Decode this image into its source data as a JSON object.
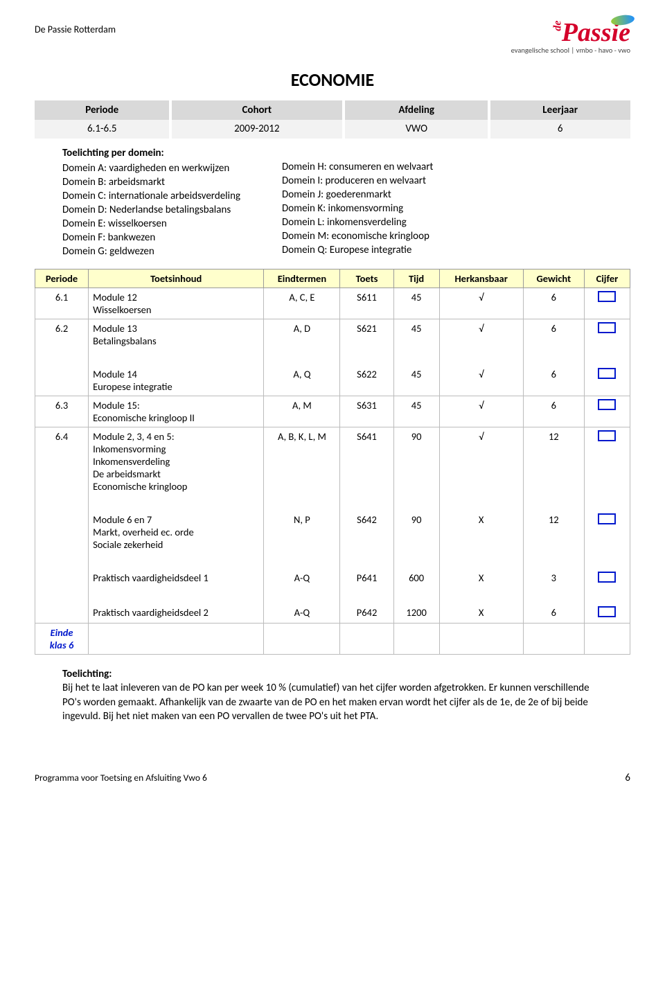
{
  "org_name": "De Passie Rotterdam",
  "logo": {
    "tagline": "evangelische school | vmbo - havo - vwo"
  },
  "title": "ECONOMIE",
  "info": {
    "headers": [
      "Periode",
      "Cohort",
      "Afdeling",
      "Leerjaar"
    ],
    "values": [
      "6.1-6.5",
      "2009-2012",
      "VWO",
      "6"
    ]
  },
  "domein": {
    "heading": "Toelichting per domein:",
    "left": [
      "Domein A: vaardigheden en werkwijzen",
      "Domein B: arbeidsmarkt",
      "Domein C: internationale arbeidsverdeling",
      "Domein D: Nederlandse betalingsbalans",
      "Domein E: wisselkoersen",
      "Domein F: bankwezen",
      "Domein G: geldwezen"
    ],
    "right": [
      "Domein H: consumeren en welvaart",
      "Domein I: produceren en welvaart",
      "Domein J: goederenmarkt",
      "Domein K: inkomensvorming",
      "Domein L: inkomensverdeling",
      "Domein M: economische kringloop",
      "Domein Q: Europese integratie"
    ]
  },
  "table": {
    "headers": [
      "Periode",
      "Toetsinhoud",
      "Eindtermen",
      "Toets",
      "Tijd",
      "Herkansbaar",
      "Gewicht",
      "Cijfer"
    ],
    "groups": [
      {
        "periode": "6.1",
        "rows": [
          {
            "inhoud": "Module 12\nWisselkoersen",
            "eind": "A, C, E",
            "toets": "S611",
            "tijd": "45",
            "herk": "√",
            "gew": "6",
            "box": true
          }
        ]
      },
      {
        "periode": "6.2",
        "rows": [
          {
            "inhoud": "Module 13\nBetalingsbalans",
            "eind": "A, D",
            "toets": "S621",
            "tijd": "45",
            "herk": "√",
            "gew": "6",
            "box": true
          },
          {
            "inhoud": "Module 14\nEuropese integratie",
            "eind": "A, Q",
            "toets": "S622",
            "tijd": "45",
            "herk": "√",
            "gew": "6",
            "box": true
          }
        ]
      },
      {
        "periode": "6.3",
        "rows": [
          {
            "inhoud": "Module 15:\nEconomische kringloop II",
            "eind": "A, M",
            "toets": "S631",
            "tijd": "45",
            "herk": "√",
            "gew": "6",
            "box": true
          }
        ]
      },
      {
        "periode": "6.4",
        "rows": [
          {
            "inhoud": "Module 2, 3, 4 en 5:\nInkomensvorming\nInkomensverdeling\nDe arbeidsmarkt\nEconomische kringloop",
            "eind": "A, B, K, L, M",
            "toets": "S641",
            "tijd": "90",
            "herk": "√",
            "gew": "12",
            "box": true
          },
          {
            "inhoud": "Module 6 en 7\nMarkt, overheid ec. orde\nSociale zekerheid",
            "eind": "N, P",
            "toets": "S642",
            "tijd": "90",
            "herk": "X",
            "gew": "12",
            "box": true
          },
          {
            "inhoud": "Praktisch vaardigheidsdeel 1",
            "eind": "A-Q",
            "toets": "P641",
            "tijd": "600",
            "herk": "X",
            "gew": "3",
            "box": true
          },
          {
            "inhoud": "Praktisch vaardigheidsdeel 2",
            "eind": "A-Q",
            "toets": "P642",
            "tijd": "1200",
            "herk": "X",
            "gew": "6",
            "box": true
          }
        ]
      }
    ],
    "einde": "Einde\nklas 6"
  },
  "toelichting": {
    "heading": "Toelichting:",
    "body": "Bij het te laat inleveren van de PO kan per week 10 % (cumulatief) van het cijfer worden afgetrokken. Er kunnen verschillende PO's worden gemaakt. Afhankelijk van de zwaarte van de PO en het maken ervan wordt het cijfer als de 1e, de 2e of bij beide ingevuld. Bij het niet maken van een PO vervallen de twee PO's uit het PTA."
  },
  "footer": {
    "program": "Programma voor Toetsing en Afsluiting Vwo 6",
    "page": "6"
  },
  "style": {
    "header_bg": "#d9d9d9",
    "subheader_bg": "#f2f2f2",
    "table_header_bg": "#ffffcc",
    "box_border": "#0018cc",
    "logo_color": "#d4002a"
  }
}
